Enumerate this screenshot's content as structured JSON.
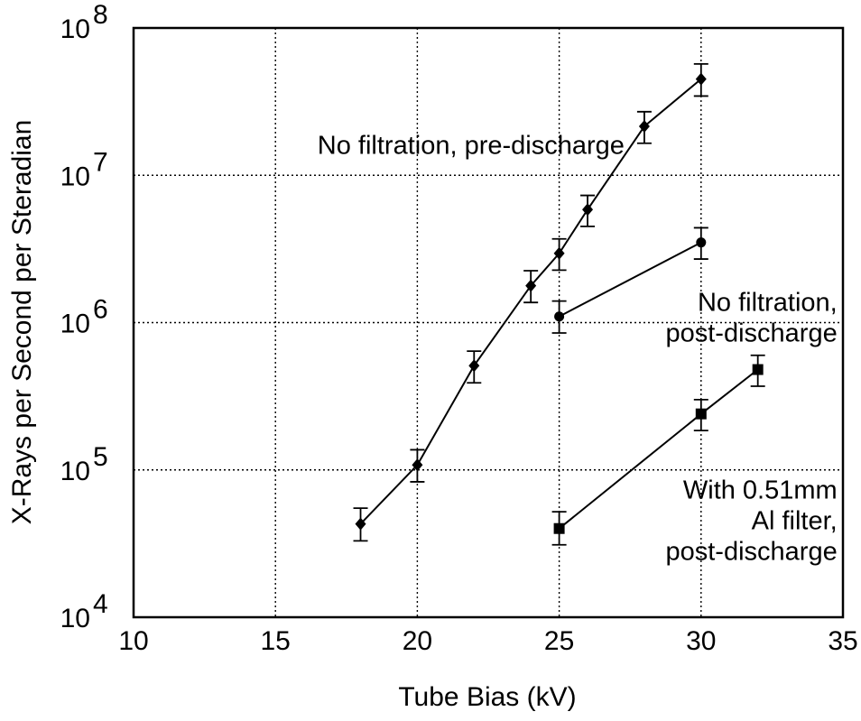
{
  "chart_data": {
    "type": "scatter",
    "title": "",
    "xlabel": "Tube Bias (kV)",
    "ylabel": "X-Rays per Second per Steradian",
    "xlim": [
      10,
      35
    ],
    "ylim": [
      10000,
      100000000
    ],
    "yscale": "log",
    "grid": true,
    "x_ticks": [
      10,
      15,
      20,
      25,
      30,
      35
    ],
    "x_tick_labels": [
      "10",
      "15",
      "20",
      "25",
      "30",
      "35"
    ],
    "y_ticks": [
      10000,
      100000,
      1000000,
      10000000,
      100000000
    ],
    "y_tick_labels": [
      {
        "base": "10",
        "exp": "4"
      },
      {
        "base": "10",
        "exp": "5"
      },
      {
        "base": "10",
        "exp": "6"
      },
      {
        "base": "10",
        "exp": "7"
      },
      {
        "base": "10",
        "exp": "8"
      }
    ],
    "series": [
      {
        "marker": "diamond",
        "x": [
          18,
          20,
          22,
          24,
          25,
          26,
          28,
          30
        ],
        "y": [
          43000,
          108000,
          510000,
          1780000,
          2950000,
          5850000,
          21500000,
          45000000
        ],
        "err_low": [
          33000,
          83000,
          390000,
          1370000,
          2270000,
          4500000,
          16500000,
          34500000
        ],
        "err_high": [
          55000,
          137000,
          640000,
          2250000,
          3700000,
          7300000,
          27000000,
          57000000
        ]
      },
      {
        "marker": "circle",
        "x": [
          25,
          30
        ],
        "y": [
          1100000,
          3500000
        ],
        "err_low": [
          850000,
          2700000
        ],
        "err_high": [
          1400000,
          4400000
        ]
      },
      {
        "marker": "square",
        "x": [
          25,
          30,
          32
        ],
        "y": [
          40000,
          240000,
          480000
        ],
        "err_low": [
          31000,
          185000,
          370000
        ],
        "err_high": [
          52000,
          300000,
          600000
        ]
      }
    ],
    "annotations": [
      {
        "lines": [
          "No filtration, pre-discharge"
        ],
        "x": 27.3,
        "y": 14000000,
        "anchor": "end"
      },
      {
        "lines": [
          "No filtration,",
          "post-discharge"
        ],
        "x": 34.8,
        "y": 1200000,
        "anchor": "end"
      },
      {
        "lines": [
          "With 0.51mm",
          "Al filter,",
          "post-discharge"
        ],
        "x": 34.8,
        "y": 64000,
        "anchor": "end"
      }
    ]
  }
}
